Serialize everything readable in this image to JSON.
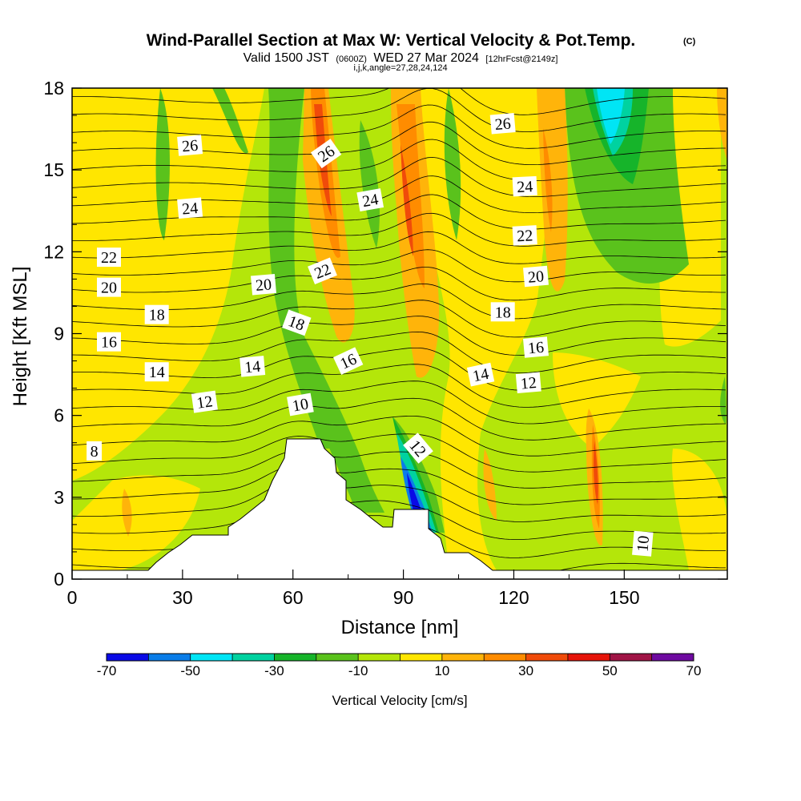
{
  "header": {
    "title": "Wind-Parallel Section at Max W: Vertical Velocity & Pot.Temp.",
    "copyright": "(C)",
    "valid_prefix": "Valid 1500 JST",
    "valid_utc": "(0600Z)",
    "valid_date": "WED 27 Mar 2024",
    "forecast": "[12hrFcst@2149z]",
    "indices": "i,j,k,angle=27,28,24,124"
  },
  "colorbar": {
    "label": "Vertical Velocity [cm/s]",
    "tick_labels": [
      "-70",
      "-50",
      "-30",
      "-10",
      "10",
      "30",
      "50",
      "70"
    ],
    "colors": [
      "#0a0ae6",
      "#0a7de8",
      "#00e5f5",
      "#00d2a0",
      "#16b42a",
      "#5ac21c",
      "#b4e60a",
      "#ffe600",
      "#ffb40a",
      "#ff8c00",
      "#f04b0a",
      "#e6140a",
      "#a01446",
      "#6e0aa0"
    ]
  },
  "chart_data": {
    "type": "contour",
    "xlabel": "Distance [nm]",
    "ylabel": "Height [Kft MSL]",
    "xlim": [
      0,
      178
    ],
    "ylim": [
      0,
      18
    ],
    "x_ticks": [
      0,
      30,
      60,
      90,
      120,
      150
    ],
    "y_ticks": [
      0,
      3,
      6,
      9,
      12,
      15,
      18
    ],
    "fill_variable": "Vertical Velocity [cm/s]",
    "fill_levels": [
      -70,
      -60,
      -50,
      -40,
      -30,
      -20,
      -10,
      0,
      10,
      20,
      30,
      40,
      50,
      60,
      70
    ],
    "contour_variable": "Pot.Temp.",
    "contour_labels": [
      {
        "text": "26",
        "x": 32,
        "y": 15.9,
        "angle": -5
      },
      {
        "text": "24",
        "x": 32,
        "y": 13.6,
        "angle": -5
      },
      {
        "text": "22",
        "x": 10,
        "y": 11.8,
        "angle": 0
      },
      {
        "text": "20",
        "x": 10,
        "y": 10.7,
        "angle": 0
      },
      {
        "text": "18",
        "x": 23,
        "y": 9.7,
        "angle": 0
      },
      {
        "text": "16",
        "x": 10,
        "y": 8.7,
        "angle": 0
      },
      {
        "text": "14",
        "x": 23,
        "y": 7.6,
        "angle": 0
      },
      {
        "text": "12",
        "x": 36,
        "y": 6.5,
        "angle": -8
      },
      {
        "text": "8",
        "x": 6,
        "y": 4.7,
        "angle": 0
      },
      {
        "text": "14",
        "x": 49,
        "y": 7.8,
        "angle": -5
      },
      {
        "text": "20",
        "x": 52,
        "y": 10.8,
        "angle": -5
      },
      {
        "text": "10",
        "x": 62,
        "y": 6.4,
        "angle": -10
      },
      {
        "text": "18",
        "x": 61,
        "y": 9.4,
        "angle": 20
      },
      {
        "text": "26",
        "x": 69,
        "y": 15.6,
        "angle": -35
      },
      {
        "text": "22",
        "x": 68,
        "y": 11.3,
        "angle": -22
      },
      {
        "text": "16",
        "x": 75,
        "y": 8.0,
        "angle": -25
      },
      {
        "text": "24",
        "x": 81,
        "y": 13.9,
        "angle": -10
      },
      {
        "text": "12",
        "x": 94,
        "y": 4.8,
        "angle": 50
      },
      {
        "text": "14",
        "x": 111,
        "y": 7.5,
        "angle": -12
      },
      {
        "text": "26",
        "x": 117,
        "y": 16.7,
        "angle": -5
      },
      {
        "text": "24",
        "x": 123,
        "y": 14.4,
        "angle": -3
      },
      {
        "text": "22",
        "x": 123,
        "y": 12.6,
        "angle": -3
      },
      {
        "text": "20",
        "x": 126,
        "y": 11.1,
        "angle": -5
      },
      {
        "text": "18",
        "x": 117,
        "y": 9.8,
        "angle": 0
      },
      {
        "text": "16",
        "x": 126,
        "y": 8.5,
        "angle": -5
      },
      {
        "text": "12",
        "x": 124,
        "y": 7.2,
        "angle": -5
      },
      {
        "text": "10",
        "x": 155,
        "y": 1.3,
        "angle": -85
      }
    ]
  }
}
